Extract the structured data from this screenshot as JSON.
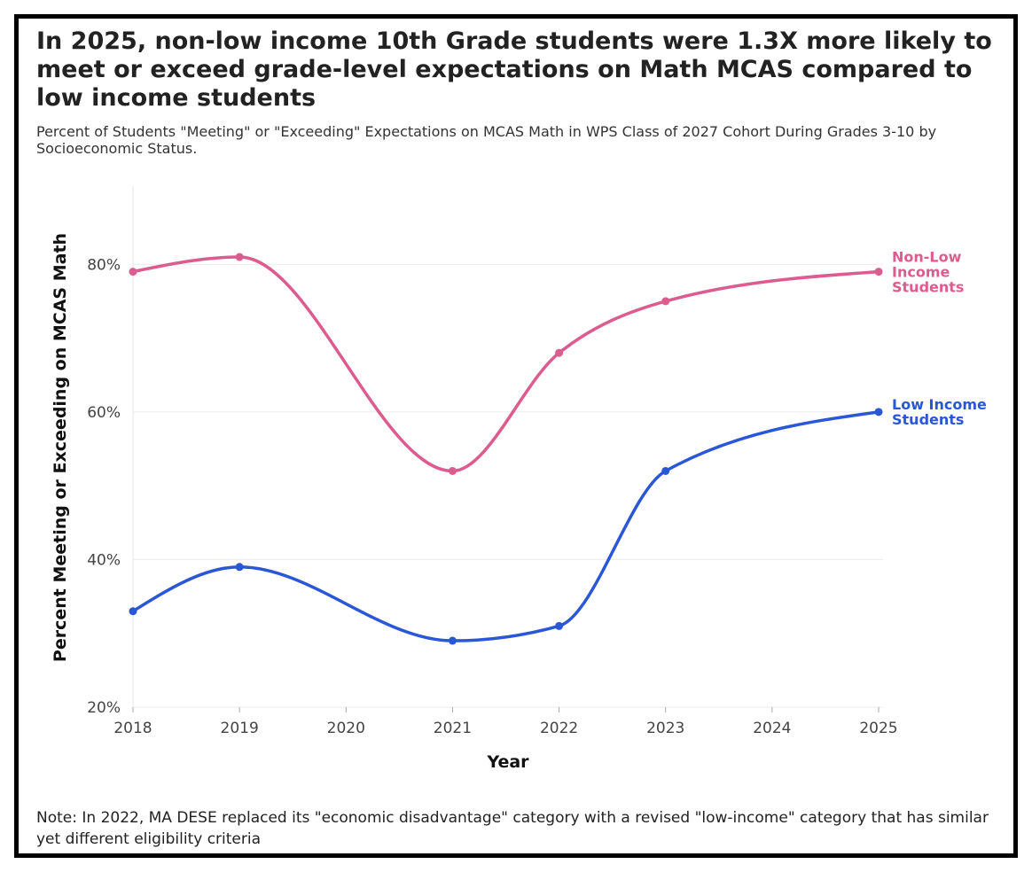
{
  "chart_data": {
    "type": "line",
    "title": "In 2025, non-low income 10th Grade students were 1.3X more likely to meet or exceed grade-level expectations on Math MCAS compared to low income students",
    "subtitle": "Percent of Students \"Meeting\" or \"Exceeding\" Expectations on MCAS Math in WPS Class of 2027 Cohort During Grades 3-10 by Socioeconomic Status.",
    "x_label": "Year",
    "y_label": "Percent Meeting or Exceeding on MCAS Math",
    "note": "Note: In 2022, MA DESE replaced its \"economic disadvantage\" category with a revised \"low-income\" category that has similar yet different eligibility criteria",
    "x": [
      2018,
      2019,
      2021,
      2022,
      2023,
      2025
    ],
    "xlim": [
      2018,
      2025
    ],
    "xticks": [
      2018,
      2019,
      2020,
      2021,
      2022,
      2023,
      2024,
      2025
    ],
    "ylim": [
      20,
      90.6
    ],
    "yticks": [
      {
        "value": 20,
        "label": "20%"
      },
      {
        "value": 40,
        "label": "40%"
      },
      {
        "value": 60,
        "label": "60%"
      },
      {
        "value": 80,
        "label": "80%"
      }
    ],
    "grid": true,
    "series": [
      {
        "name": "Non-Low Income Students",
        "color": "#dc5c8f",
        "values": [
          79,
          81,
          52,
          68,
          75,
          79
        ]
      },
      {
        "name": "Low Income Students",
        "color": "#2a57d6",
        "values": [
          33,
          39,
          29,
          31,
          52,
          60
        ]
      }
    ]
  }
}
